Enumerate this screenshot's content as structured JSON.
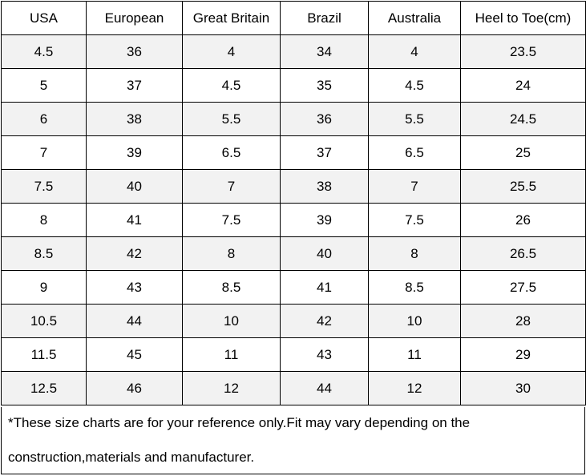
{
  "table": {
    "headers": [
      "USA",
      "European",
      "Great Britain",
      "Brazil",
      "Australia",
      "Heel to Toe(cm)"
    ],
    "rows": [
      [
        "4.5",
        "36",
        "4",
        "34",
        "4",
        "23.5"
      ],
      [
        "5",
        "37",
        "4.5",
        "35",
        "4.5",
        "24"
      ],
      [
        "6",
        "38",
        "5.5",
        "36",
        "5.5",
        "24.5"
      ],
      [
        "7",
        "39",
        "6.5",
        "37",
        "6.5",
        "25"
      ],
      [
        "7.5",
        "40",
        "7",
        "38",
        "7",
        "25.5"
      ],
      [
        "8",
        "41",
        "7.5",
        "39",
        "7.5",
        "26"
      ],
      [
        "8.5",
        "42",
        "8",
        "40",
        "8",
        "26.5"
      ],
      [
        "9",
        "43",
        "8.5",
        "41",
        "8.5",
        "27.5"
      ],
      [
        "10.5",
        "44",
        "10",
        "42",
        "10",
        "28"
      ],
      [
        "11.5",
        "45",
        "11",
        "43",
        "11",
        "29"
      ],
      [
        "12.5",
        "46",
        "12",
        "44",
        "12",
        "30"
      ]
    ]
  },
  "note": {
    "line1": "*These size charts are for your reference only.Fit may vary depending on the",
    "line2": "construction,materials and manufacturer."
  },
  "colors": {
    "shaded_row": "#f2f2f2",
    "plain_row": "#ffffff",
    "border": "#000000"
  }
}
